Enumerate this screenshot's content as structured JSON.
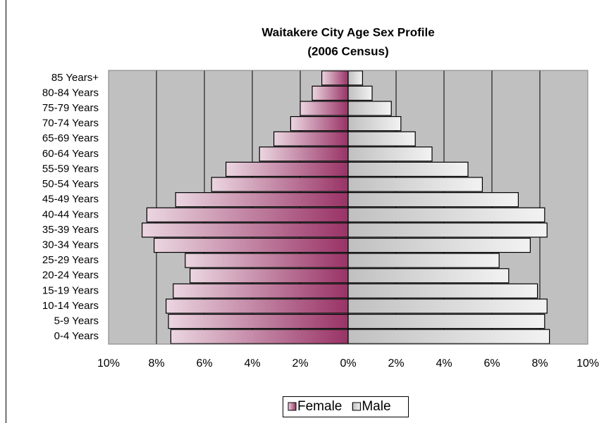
{
  "chart_data": {
    "type": "population-pyramid",
    "title": "Waitakere City Age Sex Profile",
    "subtitle": "(2006 Census)",
    "categories": [
      "0-4 Years",
      "5-9 Years",
      "10-14 Years",
      "15-19 Years",
      "20-24 Years",
      "25-29 Years",
      "30-34 Years",
      "35-39 Years",
      "40-44 Years",
      "45-49 Years",
      "50-54 Years",
      "55-59 Years",
      "60-64 Years",
      "65-69 Years",
      "70-74 Years",
      "75-79 Years",
      "80-84 Years",
      "85 Years+"
    ],
    "series": [
      {
        "name": "Female",
        "color": "#993366",
        "values": [
          -7.4,
          -7.5,
          -7.6,
          -7.3,
          -6.6,
          -6.8,
          -8.1,
          -8.6,
          -8.4,
          -7.2,
          -5.7,
          -5.1,
          -3.7,
          -3.1,
          -2.4,
          -2.0,
          -1.5,
          -1.1
        ]
      },
      {
        "name": "Male",
        "color": "#c0c0c0",
        "values": [
          8.4,
          8.2,
          8.3,
          7.9,
          6.7,
          6.3,
          7.6,
          8.3,
          8.2,
          7.1,
          5.6,
          5.0,
          3.5,
          2.8,
          2.2,
          1.8,
          1.0,
          0.6
        ]
      }
    ],
    "xlim": [
      -10,
      10
    ],
    "xticks": [
      {
        "value": -10,
        "label": "10%"
      },
      {
        "value": -8,
        "label": "8%"
      },
      {
        "value": -6,
        "label": "6%"
      },
      {
        "value": -4,
        "label": "4%"
      },
      {
        "value": -2,
        "label": "2%"
      },
      {
        "value": 0,
        "label": "0%"
      },
      {
        "value": 2,
        "label": "2%"
      },
      {
        "value": 4,
        "label": "4%"
      },
      {
        "value": 6,
        "label": "6%"
      },
      {
        "value": 8,
        "label": "8%"
      },
      {
        "value": 10,
        "label": "10%"
      }
    ],
    "grid": true,
    "legend": "bottom"
  }
}
